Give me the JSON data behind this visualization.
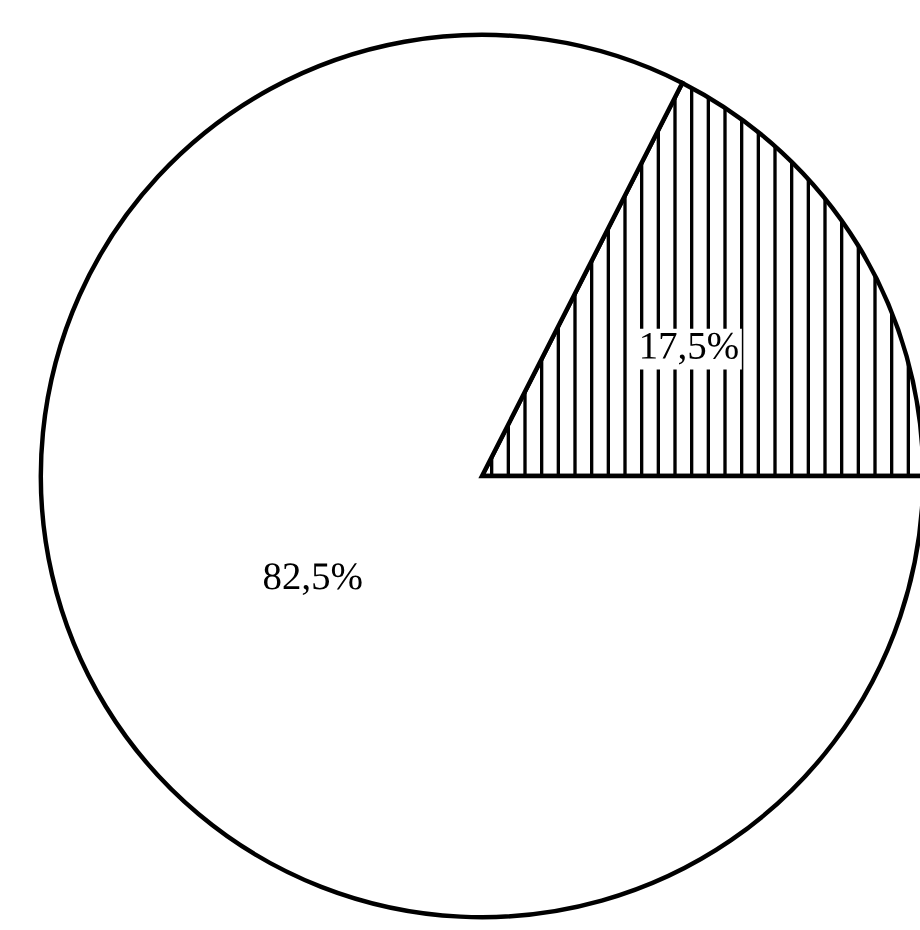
{
  "chart_data": {
    "type": "pie",
    "categories": [
      null,
      null
    ],
    "values": [
      17.5,
      82.5
    ],
    "colors": [
      "#ffffff",
      "#ffffff"
    ],
    "value_labels": [
      "17,5%",
      "82,5%"
    ]
  }
}
